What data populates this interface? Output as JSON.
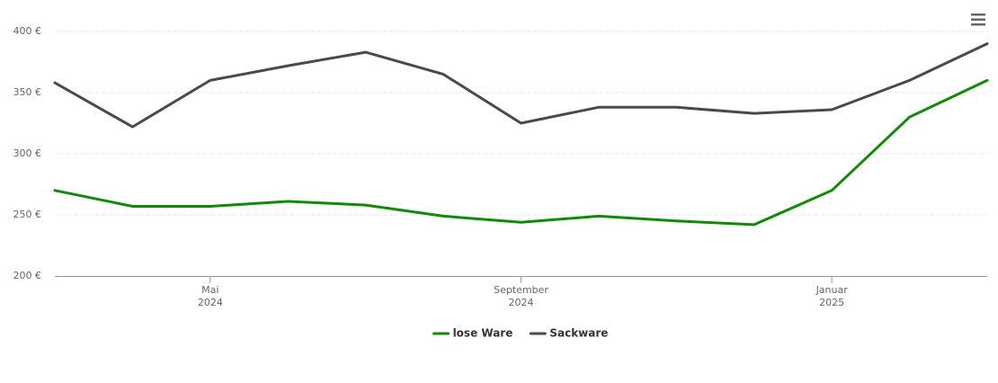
{
  "chart_data": {
    "type": "line",
    "x": [
      "2024-03",
      "2024-04",
      "2024-05",
      "2024-06",
      "2024-07",
      "2024-08",
      "2024-09",
      "2024-10",
      "2024-11",
      "2024-12",
      "2025-01",
      "2025-02",
      "2025-03"
    ],
    "series": [
      {
        "name": "lose Ware",
        "color": "#138a07",
        "values": [
          270,
          257,
          257,
          261,
          258,
          249,
          244,
          249,
          245,
          242,
          270,
          330,
          360
        ]
      },
      {
        "name": "Sackware",
        "color": "#4a4a4a",
        "values": [
          358,
          322,
          360,
          372,
          383,
          365,
          325,
          338,
          338,
          333,
          336,
          360,
          390
        ]
      }
    ],
    "xlim": [
      "2024-03",
      "2025-03"
    ],
    "xticks": [
      {
        "value": "2024-05",
        "label": [
          "Mai",
          "2024"
        ]
      },
      {
        "value": "2024-09",
        "label": [
          "September",
          "2024"
        ]
      },
      {
        "value": "2025-01",
        "label": [
          "Januar",
          "2025"
        ]
      }
    ],
    "ylim": [
      200,
      400
    ],
    "yticks": [
      {
        "value": 200,
        "label": "200 €"
      },
      {
        "value": 250,
        "label": "250 €"
      },
      {
        "value": 300,
        "label": "300 €"
      },
      {
        "value": 350,
        "label": "350 €"
      },
      {
        "value": 400,
        "label": "400 €"
      }
    ],
    "grid": true,
    "legend": "bottom"
  }
}
